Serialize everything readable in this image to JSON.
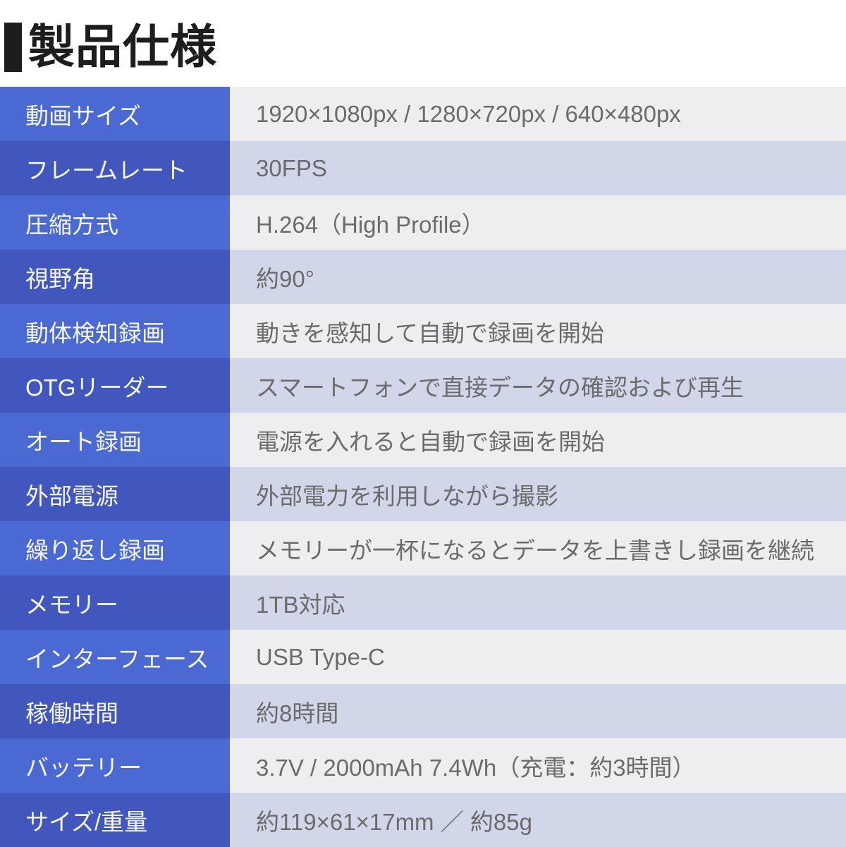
{
  "title": "製品仕様",
  "colors": {
    "title_color": "#1d1d1d",
    "label_bg_odd": "#4a69d2",
    "label_bg_even": "#4157be",
    "value_bg_odd": "#eeeef0",
    "value_bg_even": "#d1d6e8",
    "label_text": "#f5f7fc",
    "value_text": "#6b6b6b"
  },
  "table": {
    "rows": [
      {
        "label": "動画サイズ",
        "value": "1920×1080px / 1280×720px / 640×480px"
      },
      {
        "label": "フレームレート",
        "value": "30FPS"
      },
      {
        "label": "圧縮方式",
        "value": "H.264（High Profile）"
      },
      {
        "label": "視野角",
        "value": "約90°"
      },
      {
        "label": "動体検知録画",
        "value": "動きを感知して自動で録画を開始"
      },
      {
        "label": "OTGリーダー",
        "value": "スマートフォンで直接データの確認および再生"
      },
      {
        "label": "オート録画",
        "value": "電源を入れると自動で録画を開始"
      },
      {
        "label": "外部電源",
        "value": "外部電力を利用しながら撮影"
      },
      {
        "label": "繰り返し録画",
        "value": "メモリーが一杯になるとデータを上書きし録画を継続"
      },
      {
        "label": "メモリー",
        "value": "1TB対応"
      },
      {
        "label": "インターフェース",
        "value": "USB Type-C"
      },
      {
        "label": "稼働時間",
        "value": "約8時間"
      },
      {
        "label": "バッテリー",
        "value": "3.7V / 2000mAh 7.4Wh（充電：約3時間）"
      },
      {
        "label": "サイズ/重量",
        "value": "約119×61×17mm ／ 約85g"
      }
    ]
  }
}
